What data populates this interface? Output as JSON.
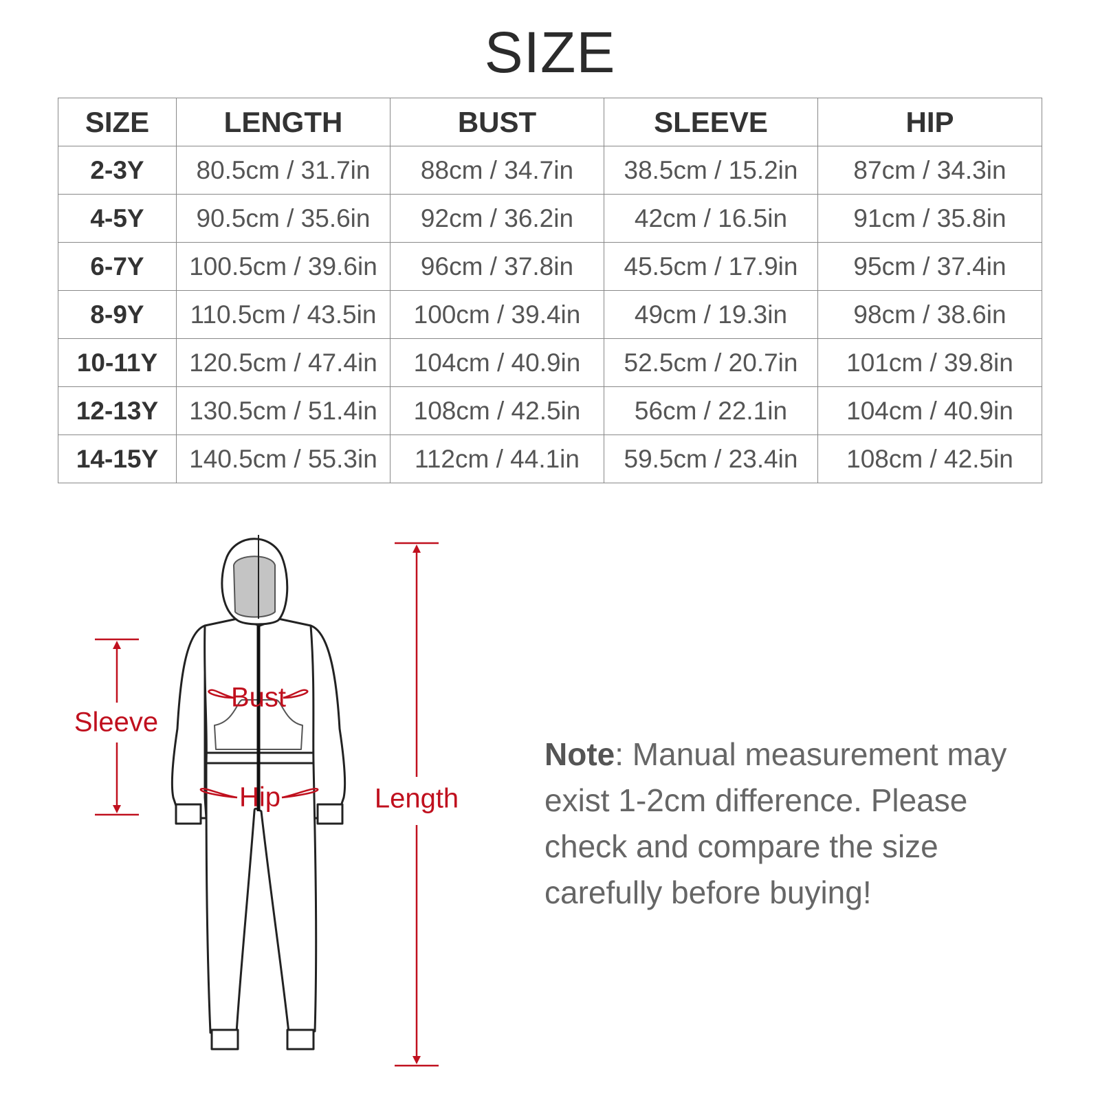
{
  "title": "SIZE",
  "table": {
    "headers": [
      "SIZE",
      "LENGTH",
      "BUST",
      "SLEEVE",
      "HIP"
    ],
    "rows": [
      [
        "2-3Y",
        "80.5cm / 31.7in",
        "88cm / 34.7in",
        "38.5cm / 15.2in",
        "87cm / 34.3in"
      ],
      [
        "4-5Y",
        "90.5cm / 35.6in",
        "92cm / 36.2in",
        "42cm / 16.5in",
        "91cm / 35.8in"
      ],
      [
        "6-7Y",
        "100.5cm / 39.6in",
        "96cm / 37.8in",
        "45.5cm / 17.9in",
        "95cm / 37.4in"
      ],
      [
        "8-9Y",
        "110.5cm / 43.5in",
        "100cm / 39.4in",
        "49cm / 19.3in",
        "98cm / 38.6in"
      ],
      [
        "10-11Y",
        "120.5cm / 47.4in",
        "104cm / 40.9in",
        "52.5cm / 20.7in",
        "101cm / 39.8in"
      ],
      [
        "12-13Y",
        "130.5cm / 51.4in",
        "108cm / 42.5in",
        "56cm / 22.1in",
        "104cm / 40.9in"
      ],
      [
        "14-15Y",
        "140.5cm / 55.3in",
        "112cm / 44.1in",
        "59.5cm / 23.4in",
        "108cm / 42.5in"
      ]
    ]
  },
  "diagram": {
    "labels": {
      "sleeve": "Sleeve",
      "bust": "Bust",
      "hip": "Hip",
      "length": "Length"
    },
    "accent_color": "#c0101e"
  },
  "note": {
    "label": "Note",
    "text": ": Manual measurement may exist 1-2cm difference. Please check and compare the size carefully before buying!"
  }
}
